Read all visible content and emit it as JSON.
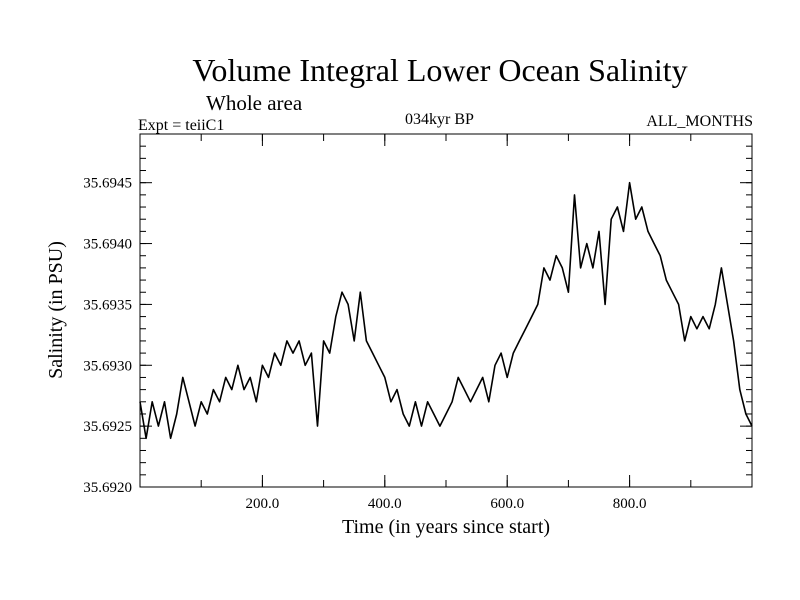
{
  "chart_data": {
    "type": "line",
    "title": "Volume Integral Lower Ocean Salinity",
    "subtitle": "Whole area",
    "annotations": {
      "left": "Expt = teiiC1",
      "center": "034kyr BP",
      "right": "ALL_MONTHS"
    },
    "xlabel": "Time (in years since start)",
    "ylabel": "Salinity (in PSU)",
    "xlim": [
      0,
      1000
    ],
    "ylim": [
      35.692,
      35.6949
    ],
    "xticks": [
      200,
      400,
      600,
      800
    ],
    "xtick_labels": [
      "200.0",
      "400.0",
      "600.0",
      "800.0"
    ],
    "yticks": [
      35.692,
      35.6925,
      35.693,
      35.6935,
      35.694,
      35.6945
    ],
    "ytick_labels": [
      "35.6920",
      "35.6925",
      "35.6930",
      "35.6935",
      "35.6940",
      "35.6945"
    ],
    "grid": false,
    "line_color": "#000000",
    "series": [
      {
        "x": [
          0,
          10,
          20,
          30,
          40,
          50,
          60,
          70,
          80,
          90,
          100,
          110,
          120,
          130,
          140,
          150,
          160,
          170,
          180,
          190,
          200,
          210,
          220,
          230,
          240,
          250,
          260,
          270,
          280,
          290,
          300,
          310,
          320,
          330,
          340,
          350,
          360,
          370,
          380,
          390,
          400,
          410,
          420,
          430,
          440,
          450,
          460,
          470,
          480,
          490,
          500,
          510,
          520,
          530,
          540,
          550,
          560,
          570,
          580,
          590,
          600,
          610,
          620,
          630,
          640,
          650,
          660,
          670,
          680,
          690,
          700,
          710,
          720,
          730,
          740,
          750,
          760,
          770,
          780,
          790,
          800,
          810,
          820,
          830,
          840,
          850,
          860,
          870,
          880,
          890,
          900,
          910,
          920,
          930,
          940,
          950,
          960,
          970,
          980,
          990,
          1000
        ],
        "values": [
          35.6927,
          35.6924,
          35.6927,
          35.6925,
          35.6927,
          35.6924,
          35.6926,
          35.6929,
          35.6927,
          35.6925,
          35.6927,
          35.6926,
          35.6928,
          35.6927,
          35.6929,
          35.6928,
          35.693,
          35.6928,
          35.6929,
          35.6927,
          35.693,
          35.6929,
          35.6931,
          35.693,
          35.6932,
          35.6931,
          35.6932,
          35.693,
          35.6931,
          35.6925,
          35.6932,
          35.6931,
          35.6934,
          35.6936,
          35.6935,
          35.6932,
          35.6936,
          35.6932,
          35.6931,
          35.693,
          35.6929,
          35.6927,
          35.6928,
          35.6926,
          35.6925,
          35.6927,
          35.6925,
          35.6927,
          35.6926,
          35.6925,
          35.6926,
          35.6927,
          35.6929,
          35.6928,
          35.6927,
          35.6928,
          35.6929,
          35.6927,
          35.693,
          35.6931,
          35.6929,
          35.6931,
          35.6932,
          35.6933,
          35.6934,
          35.6935,
          35.6938,
          35.6937,
          35.6939,
          35.6938,
          35.6936,
          35.6944,
          35.6938,
          35.694,
          35.6938,
          35.6941,
          35.6935,
          35.6942,
          35.6943,
          35.6941,
          35.6945,
          35.6942,
          35.6943,
          35.6941,
          35.694,
          35.6939,
          35.6937,
          35.6936,
          35.6935,
          35.6932,
          35.6934,
          35.6933,
          35.6934,
          35.6933,
          35.6935,
          35.6938,
          35.6935,
          35.6932,
          35.6928,
          35.6926,
          35.6925
        ]
      }
    ]
  }
}
